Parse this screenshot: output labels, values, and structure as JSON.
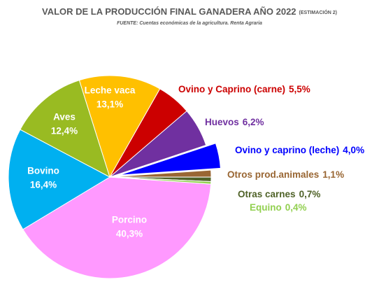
{
  "chart_data": {
    "type": "pie",
    "title": "VALOR DE LA PRODUCCIÓN FINAL GANADERA AÑO 2022",
    "title_note": "(ESTIMACIÓN 2)",
    "subtitle": "FUENTE: Cuentas económicas de la agricultura. Renta Agraria",
    "categories": [
      "Porcino",
      "Bovino",
      "Aves",
      "Leche vaca",
      "Ovino y Caprino (carne)",
      "Huevos",
      "Ovino y caprino (leche)",
      "Otros prod.animales",
      "Otras carnes",
      "Equino"
    ],
    "values": [
      40.3,
      16.4,
      12.4,
      13.1,
      5.5,
      6.2,
      4.0,
      1.1,
      0.7,
      0.4
    ],
    "value_labels": [
      "40,3%",
      "16,4%",
      "12,4%",
      "13,1%",
      "5,5%",
      "6,2%",
      "4,0%",
      "1,1%",
      "0,7%",
      "0,4%"
    ],
    "colors": [
      "#ff99ff",
      "#00b0f0",
      "#99bb22",
      "#ffc000",
      "#cc0000",
      "#7030a0",
      "#0000ff",
      "#996633",
      "#4f6228",
      "#92d050"
    ],
    "label_colors": [
      "#ffffff",
      "#ffffff",
      "#ffffff",
      "#ffffff",
      "#cc0000",
      "#7030a0",
      "#0000ff",
      "#996633",
      "#4f6228",
      "#92d050"
    ],
    "exploded": [
      6
    ]
  }
}
